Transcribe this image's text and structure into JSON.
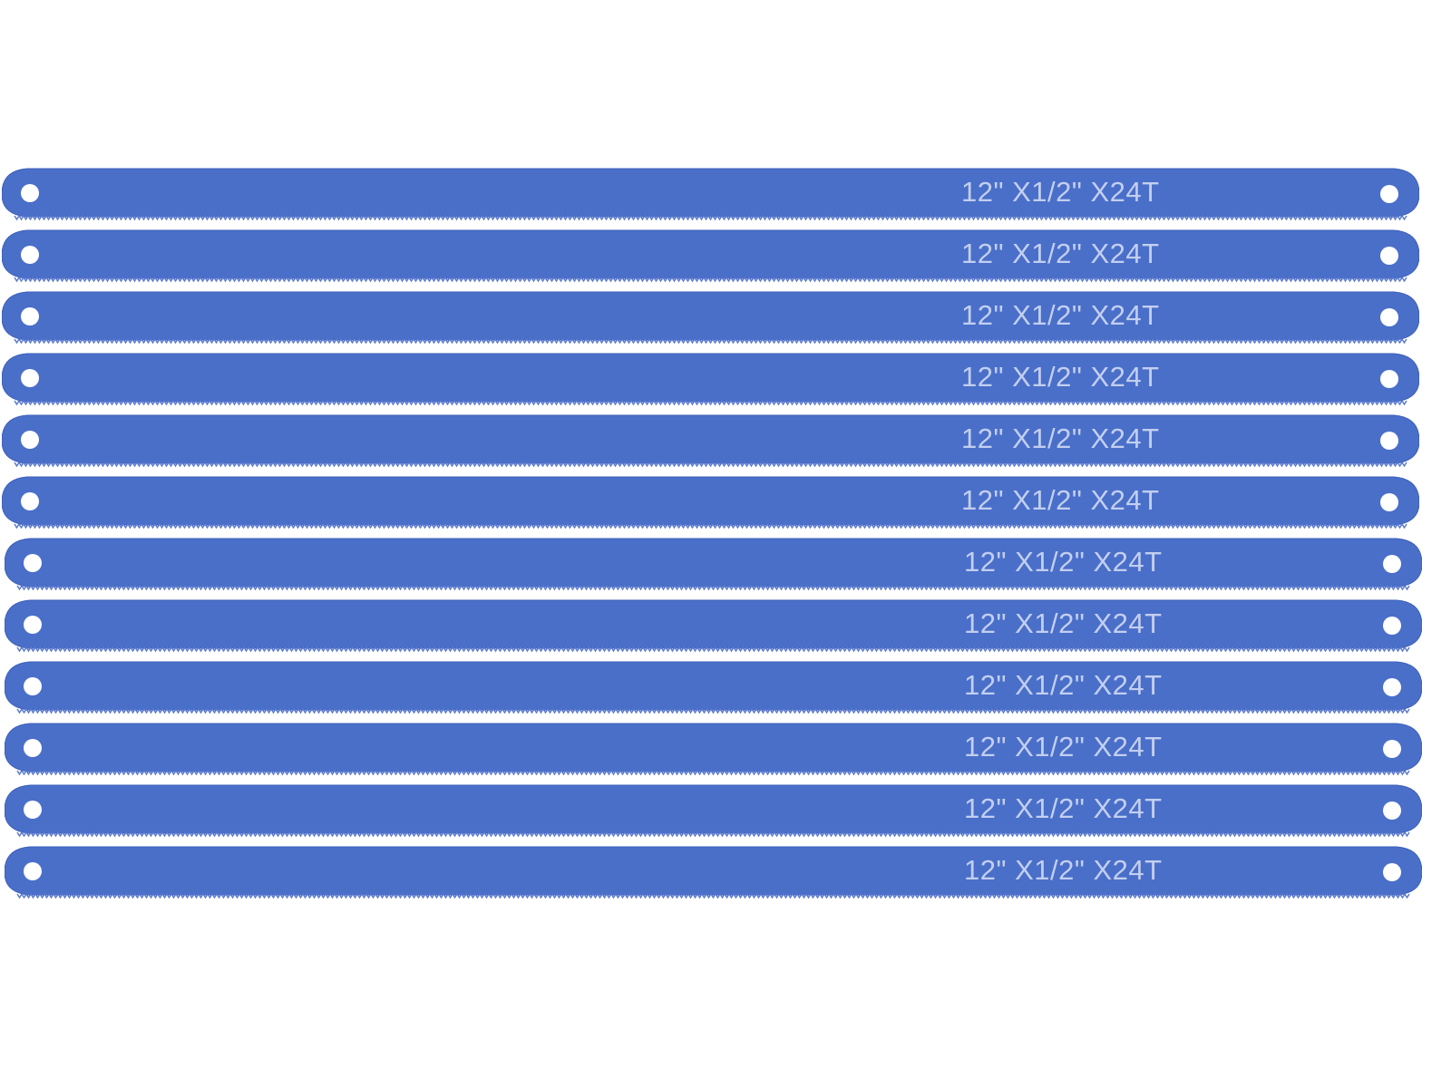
{
  "product": {
    "blade_count": 12,
    "blade_label": "12\" X1/2\" X24T",
    "colors": {
      "blade": "#4a6fc9",
      "blade_edge": "#3d5fb8",
      "label": "#c3cff0",
      "background": "#ffffff"
    }
  }
}
